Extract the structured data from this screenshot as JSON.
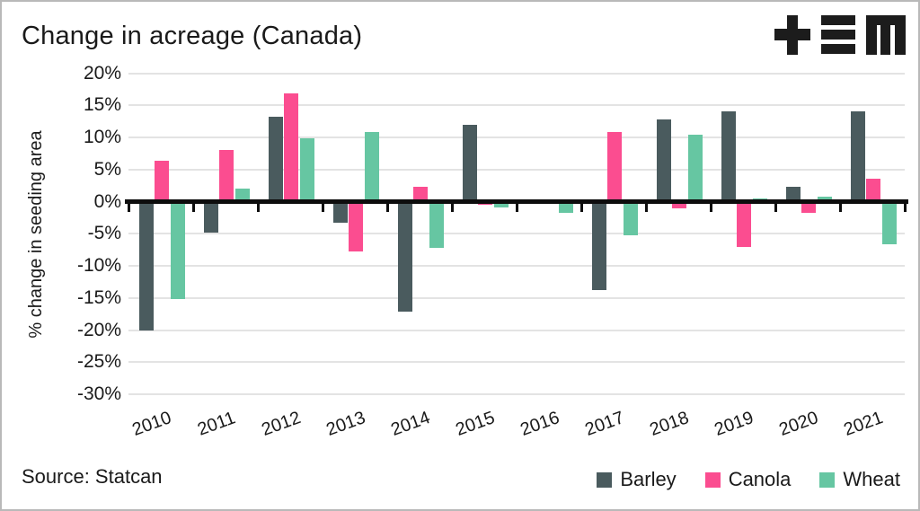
{
  "header": {
    "title": "Change in acreage (Canada)",
    "logo": "tem-logo"
  },
  "chart_data": {
    "type": "bar",
    "title": "Change in acreage (Canada)",
    "xlabel": "",
    "ylabel": "% change in seeding area",
    "ylim": [
      -30,
      20
    ],
    "ytick_step": 5,
    "ytick_suffix": "%",
    "grid": true,
    "legend_position": "bottom-right",
    "categories": [
      "2010",
      "2011",
      "2012",
      "2013",
      "2014",
      "2015",
      "2016",
      "2017",
      "2018",
      "2019",
      "2020",
      "2021"
    ],
    "series": [
      {
        "name": "Barley",
        "color": "#4a5b5e",
        "values": [
          -20.0,
          -4.8,
          13.2,
          -3.3,
          -17.1,
          11.9,
          0.3,
          -13.8,
          12.8,
          14.1,
          2.3,
          14.0
        ]
      },
      {
        "name": "Canola",
        "color": "#fb4d90",
        "values": [
          6.3,
          8.0,
          16.8,
          -7.8,
          2.3,
          -0.5,
          0,
          10.8,
          -1.0,
          -7.0,
          -1.8,
          3.6
        ]
      },
      {
        "name": "Wheat",
        "color": "#66c6a2",
        "values": [
          -15.2,
          2.0,
          9.9,
          10.9,
          -7.2,
          -0.9,
          -1.7,
          -5.2,
          10.4,
          0.5,
          0.7,
          -6.6
        ]
      }
    ]
  },
  "footer": {
    "source": "Source: Statcan"
  },
  "colors": {
    "gridline": "#e3e3e3",
    "axis": "#0d0d0d",
    "text": "#1a1a1a",
    "border": "#b9b9b9",
    "background": "#ffffff",
    "logo": "#1c1c1c"
  }
}
